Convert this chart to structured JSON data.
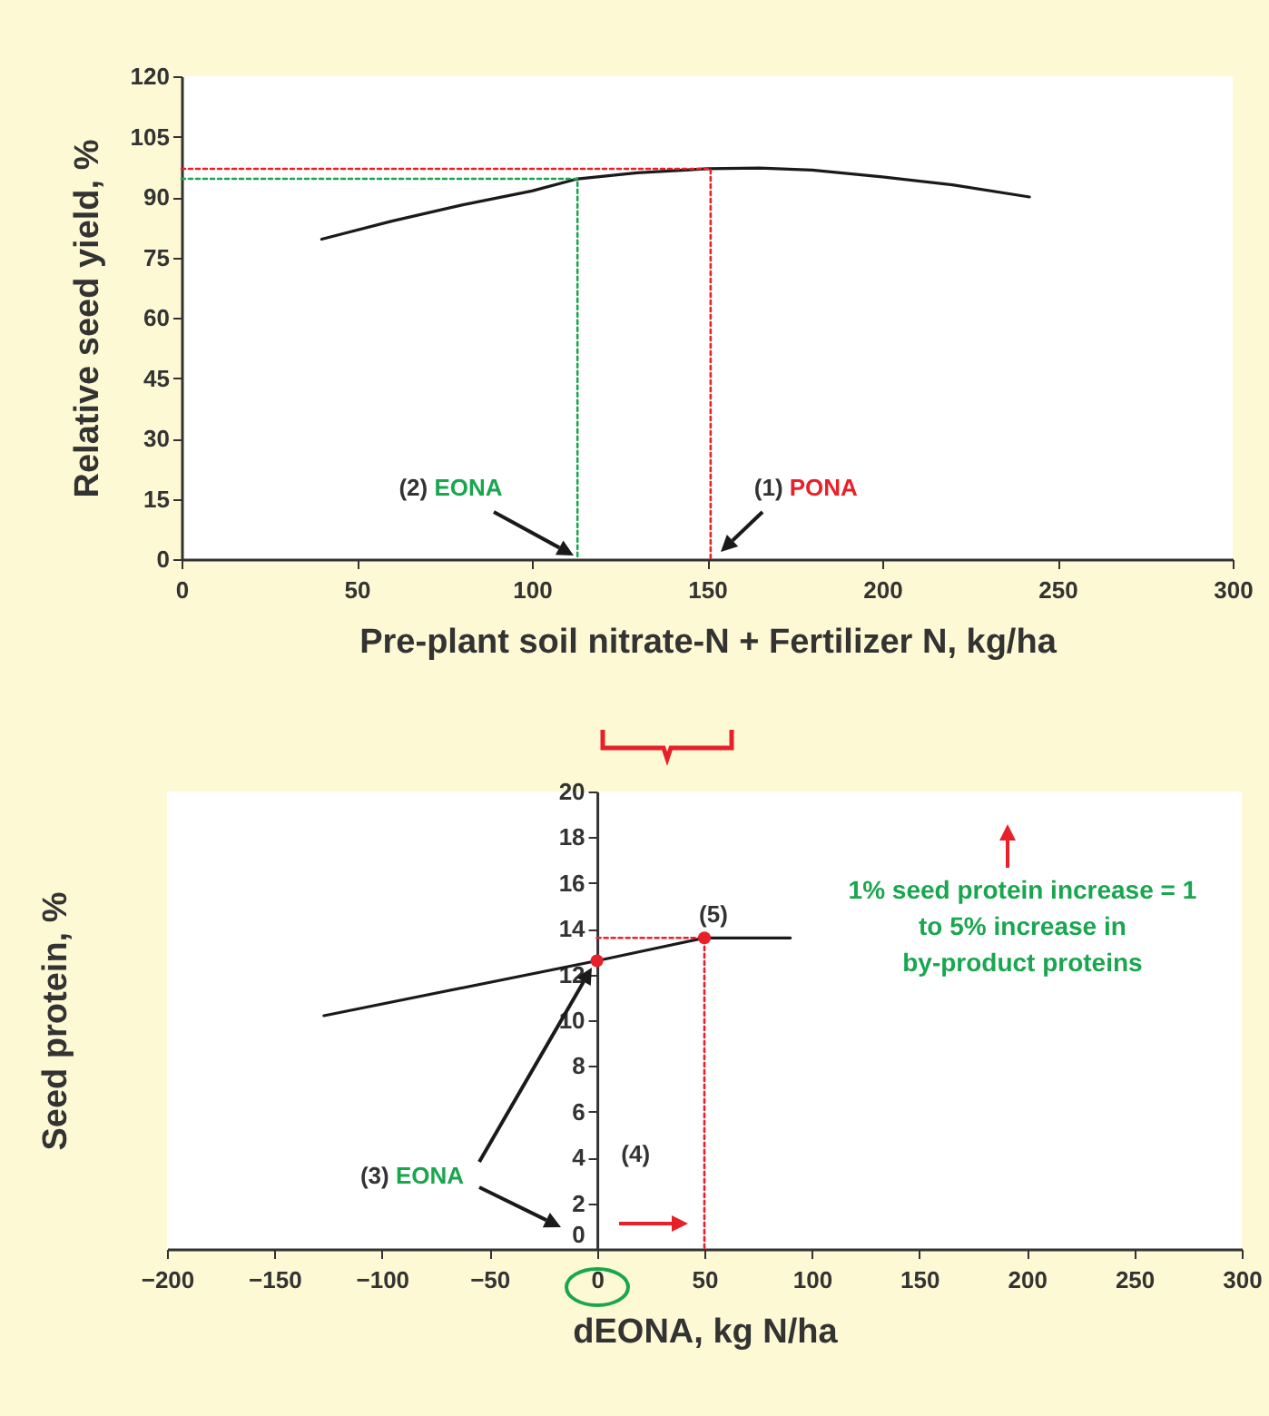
{
  "chart_data": [
    {
      "type": "line",
      "xlabel": "Pre-plant soil nitrate-N + Fertilizer N, kg/ha",
      "ylabel": "Relative seed yield, %",
      "xlim": [
        0,
        300
      ],
      "xticks": [
        0,
        50,
        100,
        150,
        200,
        250,
        300
      ],
      "ylim": [
        0,
        120
      ],
      "yticks": [
        0,
        15,
        30,
        45,
        60,
        75,
        90,
        105,
        120
      ],
      "series": [
        {
          "color": "#1a1a1a",
          "x": [
            40,
            60,
            80,
            100,
            113,
            130,
            150,
            165,
            180,
            200,
            220,
            242
          ],
          "values": [
            79.5,
            84,
            88,
            91.5,
            94.5,
            96,
            97,
            97.2,
            96.7,
            95,
            93,
            90
          ]
        },
        {
          "color": "#1aa64f",
          "line_style": "dotted",
          "x": [
            0,
            113,
            113
          ],
          "values": [
            94.5,
            94.5,
            0
          ]
        },
        {
          "color": "#e8202a",
          "line_style": "dotted",
          "x": [
            0,
            151,
            151
          ],
          "values": [
            97,
            97,
            0
          ]
        }
      ],
      "annotations": [
        "(2) EONA",
        "(1) PONA"
      ]
    },
    {
      "type": "line",
      "xlabel": "dEONA, kg N/ha",
      "ylabel": "Seed protein, %",
      "xlim": [
        -200,
        300
      ],
      "xticks": [
        -200,
        -150,
        -100,
        -50,
        0,
        50,
        100,
        150,
        200,
        250,
        300
      ],
      "ylim": [
        0,
        20
      ],
      "yticks": [
        0,
        2,
        4,
        6,
        8,
        10,
        12,
        14,
        16,
        18,
        20
      ],
      "series": [
        {
          "color": "#1a1a1a",
          "x": [
            -127,
            0,
            50,
            90
          ],
          "values": [
            10.2,
            12.6,
            13.6,
            13.6
          ]
        },
        {
          "color": "#e8202a",
          "line_style": "dotted",
          "x": [
            0,
            50,
            50
          ],
          "values": [
            13.6,
            13.6,
            0
          ]
        },
        {
          "type": "scatter",
          "marker": "circle",
          "color": "#e8202a",
          "x": [
            0,
            50
          ],
          "values": [
            12.6,
            13.6
          ]
        }
      ],
      "annotations": [
        "(3) EONA",
        "(4)",
        {
          "text": "(5)",
          "x": 50,
          "y": 13.6
        },
        "1% seed protein increase = 1 to 5% increase in by-product proteins"
      ]
    }
  ]
}
